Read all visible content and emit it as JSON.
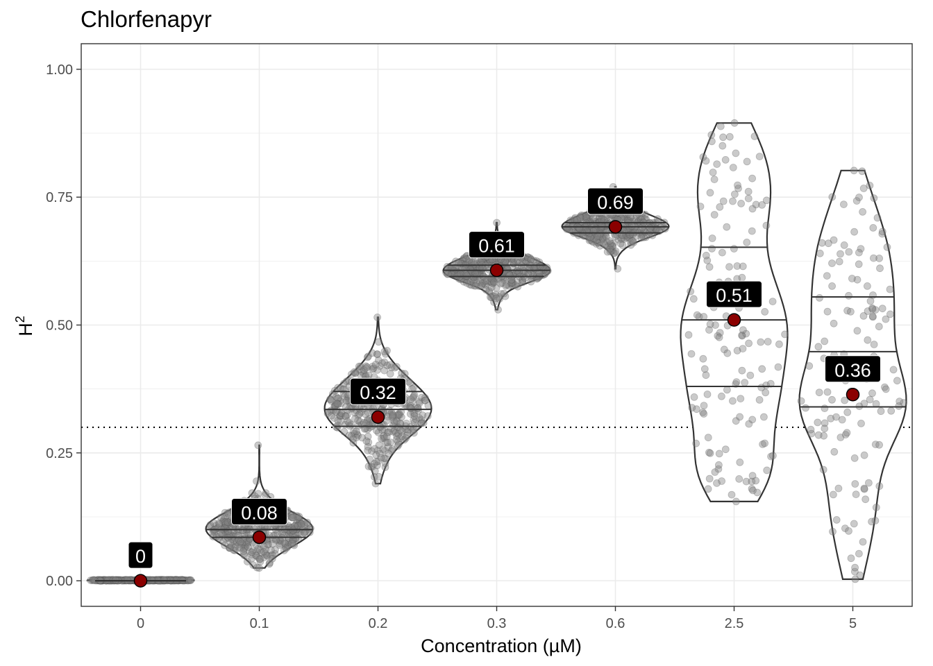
{
  "chart_data": {
    "type": "violin",
    "title": "Chlorfenapyr",
    "xlabel": "Concentration (µM)",
    "ylabel_base": "H",
    "ylabel_sup": "2",
    "ylim": [
      -0.05,
      1.05
    ],
    "y_ticks": [
      {
        "value": 0.0,
        "label": "0.00"
      },
      {
        "value": 0.25,
        "label": "0.25"
      },
      {
        "value": 0.5,
        "label": "0.50"
      },
      {
        "value": 0.75,
        "label": "0.75"
      },
      {
        "value": 1.0,
        "label": "1.00"
      }
    ],
    "threshold": 0.3,
    "colors": {
      "mean_point": "#8b0000",
      "jitter_point": "#808080",
      "label_bg": "#000000",
      "label_text": "#ffffff",
      "violin_stroke": "#333333",
      "grid": "#ebebeb"
    },
    "groups": [
      {
        "category": "0",
        "label": "0",
        "mean": 0.0,
        "min": 0.0,
        "max": 0.002,
        "q25": 0.0,
        "q50": 0.0,
        "q75": 0.0,
        "n": 300
      },
      {
        "category": "0.1",
        "label": "0.08",
        "mean": 0.085,
        "min": 0.025,
        "max": 0.265,
        "q25": 0.085,
        "q50": 0.1,
        "q75": 0.1,
        "n": 400
      },
      {
        "category": "0.2",
        "label": "0.32",
        "mean": 0.32,
        "min": 0.19,
        "max": 0.515,
        "q25": 0.302,
        "q50": 0.335,
        "q75": 0.37,
        "n": 400
      },
      {
        "category": "0.3",
        "label": "0.61",
        "mean": 0.607,
        "min": 0.53,
        "max": 0.7,
        "q25": 0.595,
        "q50": 0.607,
        "q75": 0.617,
        "n": 400
      },
      {
        "category": "0.6",
        "label": "0.69",
        "mean": 0.692,
        "min": 0.61,
        "max": 0.77,
        "q25": 0.68,
        "q50": 0.692,
        "q75": 0.7,
        "n": 400
      },
      {
        "category": "2.5",
        "label": "0.51",
        "mean": 0.51,
        "min": 0.155,
        "max": 0.895,
        "q25": 0.38,
        "q50": 0.51,
        "q75": 0.652,
        "n": 150
      },
      {
        "category": "5",
        "label": "0.36",
        "mean": 0.364,
        "min": 0.003,
        "max": 0.802,
        "q25": 0.34,
        "q50": 0.448,
        "q75": 0.555,
        "n": 140
      }
    ]
  }
}
